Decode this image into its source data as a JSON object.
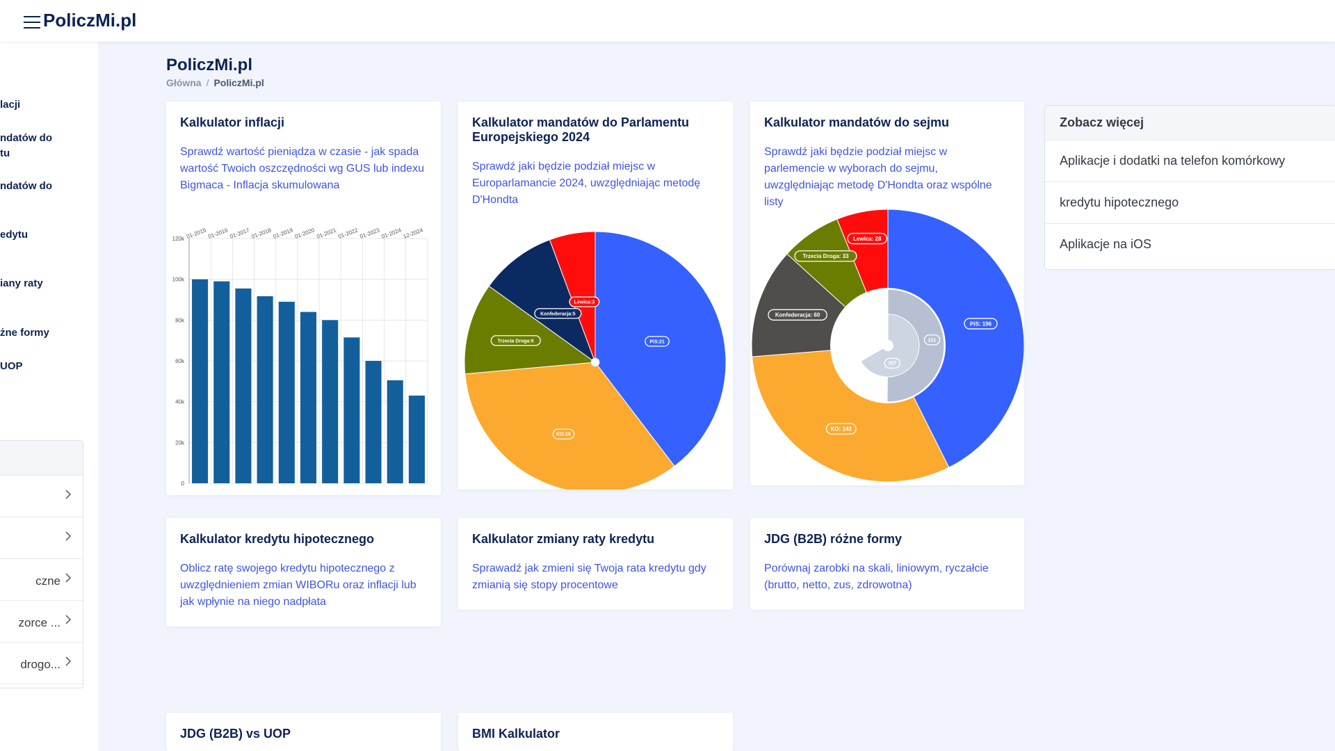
{
  "header": {
    "brand": "PoliczMi.pl"
  },
  "sidebar": {
    "links": [
      "lacji",
      "ndatów do\ntu",
      "ndatów do",
      "edytu",
      "iany raty",
      "żne formy",
      "UOP"
    ],
    "list_items": [
      "",
      "",
      "czne",
      "zorce ...",
      "drogo..."
    ]
  },
  "page": {
    "title": "PoliczMi.pl",
    "breadcrumb": {
      "home": "Główna",
      "separator": "/",
      "current": "PoliczMi.pl"
    }
  },
  "cards": [
    {
      "title": "Kalkulator inflacji",
      "desc": "Sprawdź wartość pieniądza w czasie - jak spada wartość Twoich oszczędności wg GUS lub indexu Bigmaca - Inflacja skumulowana"
    },
    {
      "title": "Kalkulator mandatów do Parlamentu Europejskiego 2024",
      "desc": "Sprawdź jaki będzie podział miejsc w Europarlamancie 2024, uwzględniając metodę D'Hondta"
    },
    {
      "title": "Kalkulator mandatów do sejmu",
      "desc": "Sprawdź jaki będzie podział miejsc w parlemencie w wyborach do sejmu, uwzględniając metodę D'Hondta oraz wspólne listy"
    },
    {
      "title": "Kalkulator kredytu hipotecznego",
      "desc": "Oblicz ratę swojego kredytu hipotecznego z uwzględnieniem zmian WIBORu oraz inflacji lub jak wpłynie na niego nadpłata"
    },
    {
      "title": "Kalkulator zmiany raty kredytu",
      "desc": "Sprawadź jak zmieni się Twoja rata kredytu gdy zmianią się stopy procentowe"
    },
    {
      "title": "JDG (B2B) różne formy",
      "desc": "Porównaj zarobki na skali, liniowym, ryczałcie (brutto, netto, zus, zdrowotna)"
    },
    {
      "title": "JDG (B2B) vs UOP",
      "desc": ""
    },
    {
      "title": "BMI Kalkulator",
      "desc": ""
    }
  ],
  "aside": {
    "title": "Zobacz więcej",
    "items": [
      "Aplikacje i dodatki na telefon komórkowy",
      "kredytu hipotecznego",
      "Aplikacje na iOS"
    ]
  },
  "chart_data": [
    {
      "type": "bar",
      "categories": [
        "01-2015",
        "01-2016",
        "01-2017",
        "01-2018",
        "01-2019",
        "01-2020",
        "01-2021",
        "01-2022",
        "01-2023",
        "01-2024",
        "12-2024"
      ],
      "values": [
        100000,
        99000,
        95500,
        91700,
        89000,
        84000,
        80000,
        71500,
        60000,
        50500,
        43000
      ],
      "ylim": [
        0,
        120000
      ],
      "yticks": [
        {
          "value": 0,
          "label": "0"
        },
        {
          "value": 20000,
          "label": "20k"
        },
        {
          "value": 40000,
          "label": "40k"
        },
        {
          "value": 60000,
          "label": "60k"
        },
        {
          "value": 80000,
          "label": "80k"
        },
        {
          "value": 100000,
          "label": "100k"
        },
        {
          "value": 120000,
          "label": "120k"
        }
      ],
      "grid": true,
      "color": "#135f9c"
    },
    {
      "type": "pie",
      "slices": [
        {
          "label": "PiS:21",
          "value": 21,
          "color": "#3461ff"
        },
        {
          "label": "KO:18",
          "value": 18,
          "color": "#fca930"
        },
        {
          "label": "Trzecia Droga:6",
          "value": 6,
          "color": "#6a7d00"
        },
        {
          "label": "Konfederacja:5",
          "value": 5,
          "color": "#0c2a62"
        },
        {
          "label": "Lewica:3",
          "value": 3,
          "color": "#ff0d0d"
        }
      ]
    },
    {
      "type": "pie",
      "slices": [
        {
          "label": "PiS: 196",
          "value": 196,
          "color": "#3461ff"
        },
        {
          "label": "KO: 143",
          "value": 143,
          "color": "#fca930"
        },
        {
          "label": "Konfederacja: 60",
          "value": 60,
          "color": "#504e4a"
        },
        {
          "label": "Trzecia Droga: 33",
          "value": 33,
          "color": "#6a7d00"
        },
        {
          "label": "Lewica: 28",
          "value": 28,
          "color": "#ff0d0d"
        }
      ],
      "inner_rings": [
        {
          "label": "231",
          "value": 231,
          "total": 460,
          "color": "#b6c0d2"
        },
        {
          "label": "307",
          "value": 307,
          "total": 460,
          "color": "#cdd5e2"
        }
      ]
    }
  ]
}
